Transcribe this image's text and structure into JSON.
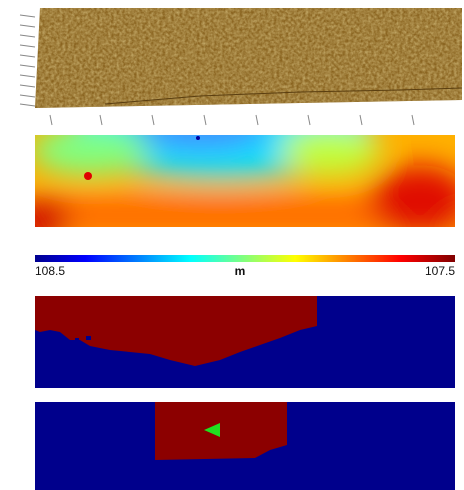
{
  "colorbar": {
    "left_label": "108.5",
    "unit": "m",
    "right_label": "107.5"
  }
}
